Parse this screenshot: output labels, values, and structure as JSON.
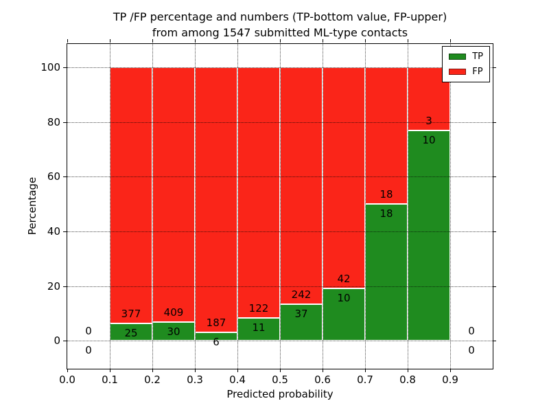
{
  "chart_data": {
    "type": "bar",
    "stacked": true,
    "title_lines": [
      "TP /FP percentage and numbers (TP-bottom value, FP-upper)",
      "from among 1547 submitted ML-type contacts"
    ],
    "xlabel": "Predicted probability",
    "ylabel": "Percentage",
    "total_submitted": 1547,
    "xlim": [
      0.0,
      1.0
    ],
    "ylim": [
      -10.25,
      108.5
    ],
    "xticks": {
      "values": [
        0.0,
        0.1,
        0.2,
        0.3,
        0.4,
        0.5,
        0.6,
        0.7,
        0.8,
        0.9
      ],
      "labels": [
        "0.0",
        "0.1",
        "0.2",
        "0.3",
        "0.4",
        "0.5",
        "0.6",
        "0.7",
        "0.8",
        "0.9"
      ]
    },
    "yticks": {
      "values": [
        0,
        20,
        40,
        60,
        80,
        100
      ],
      "labels": [
        "0",
        "20",
        "40",
        "60",
        "80",
        "100"
      ]
    },
    "grid": true,
    "colors": {
      "tp": "#1f8b1f",
      "fp": "#fa2519",
      "bar_edge": "#ffffff"
    },
    "legend": {
      "position": "upper-right",
      "entries": [
        {
          "label": "TP",
          "color": "#1f8b1f"
        },
        {
          "label": "FP",
          "color": "#fa2519"
        }
      ]
    },
    "label_offset_pct": 3.5,
    "bins": [
      {
        "range": [
          0.0,
          0.1
        ],
        "tp": 0,
        "fp": 0,
        "tp_pct": null
      },
      {
        "range": [
          0.1,
          0.2
        ],
        "tp": 25,
        "fp": 377,
        "tp_pct": 6.2
      },
      {
        "range": [
          0.2,
          0.3
        ],
        "tp": 30,
        "fp": 409,
        "tp_pct": 6.8
      },
      {
        "range": [
          0.3,
          0.4
        ],
        "tp": 6,
        "fp": 187,
        "tp_pct": 3.1
      },
      {
        "range": [
          0.4,
          0.5
        ],
        "tp": 11,
        "fp": 122,
        "tp_pct": 8.3
      },
      {
        "range": [
          0.5,
          0.6
        ],
        "tp": 37,
        "fp": 242,
        "tp_pct": 13.3
      },
      {
        "range": [
          0.6,
          0.7
        ],
        "tp": 10,
        "fp": 42,
        "tp_pct": 19.2
      },
      {
        "range": [
          0.7,
          0.8
        ],
        "tp": 18,
        "fp": 18,
        "tp_pct": 50.0
      },
      {
        "range": [
          0.8,
          0.9
        ],
        "tp": 10,
        "fp": 3,
        "tp_pct": 76.9
      },
      {
        "range": [
          0.9,
          1.0
        ],
        "tp": 0,
        "fp": 0,
        "tp_pct": null
      }
    ]
  }
}
